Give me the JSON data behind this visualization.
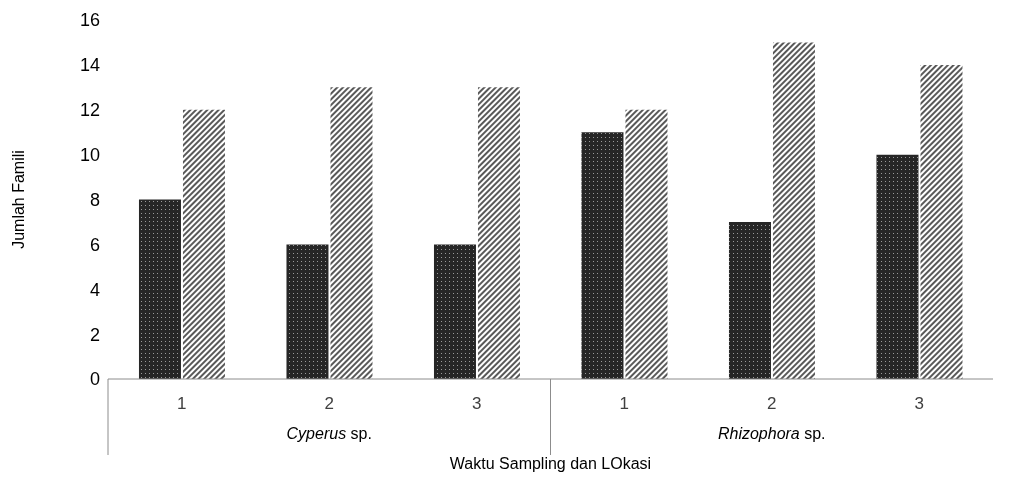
{
  "chart_data": {
    "type": "bar",
    "xlabel": "Waktu Sampling dan LOkasi",
    "ylabel": "Jumlah Famili",
    "categories": [
      "1",
      "2",
      "3",
      "1",
      "2",
      "3"
    ],
    "annotations": [
      "Cyperus sp.",
      "Rhizophora sp."
    ],
    "series": [
      {
        "color": "#262626",
        "values": [
          8,
          6,
          6,
          11,
          7,
          10
        ]
      },
      {
        "color": "#595959",
        "values": [
          12,
          13,
          13,
          12,
          15,
          14
        ]
      }
    ],
    "ylim": [
      0,
      16
    ],
    "yticks": [
      0,
      2,
      4,
      6,
      8,
      10,
      12,
      14,
      16
    ],
    "grid": false,
    "legend": false
  }
}
